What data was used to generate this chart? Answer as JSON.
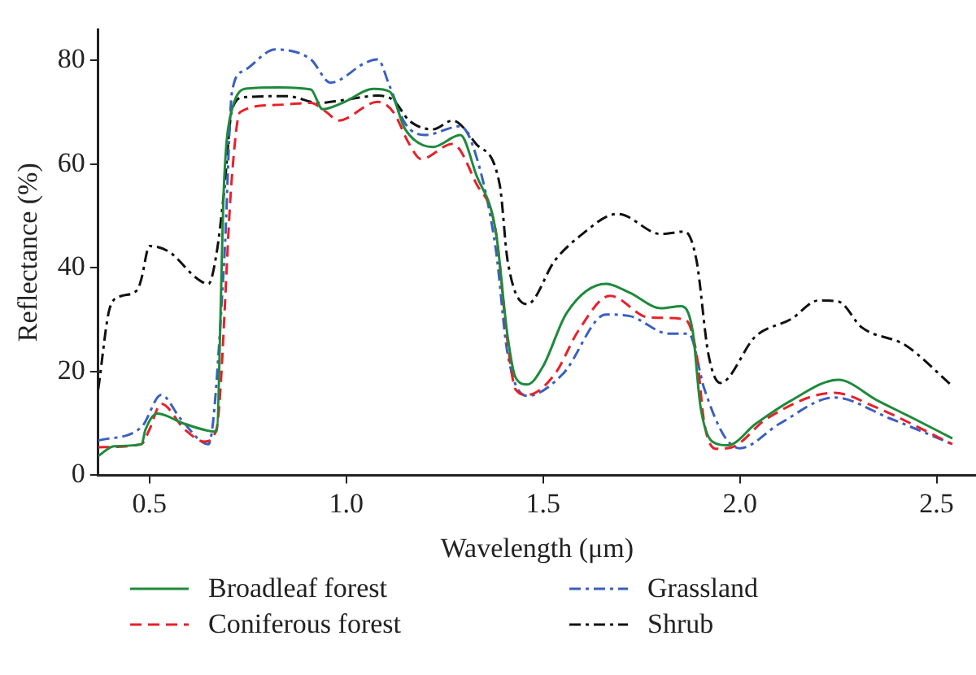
{
  "chart_data": {
    "type": "line",
    "xlabel": "Wavelength (μm)",
    "ylabel": "Reflectance (%)",
    "xlim": [
      0.37,
      2.6
    ],
    "ylim": [
      0,
      86
    ],
    "xticks": [
      0.5,
      {
        "value": 1,
        "label": "1.0"
      },
      1.5,
      {
        "value": 2,
        "label": "2.0"
      },
      2.5
    ],
    "yticks": [
      0,
      20,
      40,
      60,
      80
    ],
    "grid": false,
    "legend": "bottom",
    "marker": "none",
    "series": [
      {
        "name": "Broadleaf forest",
        "color": "#1e8a3c",
        "line_style": "solid",
        "x": [
          0.37,
          0.41,
          0.48,
          0.49,
          0.52,
          0.59,
          0.67,
          0.69,
          0.71,
          0.75,
          0.83,
          0.91,
          0.94,
          0.99,
          1.07,
          1.11,
          1.15,
          1.22,
          1.29,
          1.33,
          1.38,
          1.41,
          1.43,
          1.46,
          1.5,
          1.56,
          1.66,
          1.72,
          1.8,
          1.85,
          1.88,
          1.9,
          1.93,
          1.97,
          2.04,
          2.13,
          2.25,
          2.35,
          2.44,
          2.54
        ],
        "values": [
          3.7,
          5.6,
          6,
          8.8,
          11.9,
          9.9,
          8.4,
          57,
          70.6,
          74.6,
          74.8,
          74.4,
          70.6,
          71.8,
          74.5,
          74,
          66.7,
          63.3,
          65.6,
          58,
          47,
          26.8,
          18.9,
          17.5,
          21,
          31.3,
          36.9,
          35.2,
          32.2,
          32.6,
          27.9,
          13.3,
          6.5,
          5.8,
          9.9,
          14.4,
          18.4,
          14.4,
          11,
          7.1
        ]
      },
      {
        "name": "Coniferous forest",
        "color": "#e8202a",
        "line_style": "dashed",
        "x": [
          0.37,
          0.48,
          0.5,
          0.53,
          0.59,
          0.64,
          0.67,
          0.71,
          0.73,
          0.82,
          0.91,
          0.95,
          0.98,
          1.08,
          1.12,
          1.16,
          1.19,
          1.27,
          1.33,
          1.38,
          1.41,
          1.43,
          1.46,
          1.53,
          1.59,
          1.67,
          1.77,
          1.86,
          1.89,
          1.91,
          1.94,
          1.98,
          2.07,
          2.24,
          2.34,
          2.54
        ],
        "values": [
          5.4,
          6,
          8.8,
          13.8,
          8.8,
          6.5,
          8.8,
          58,
          70,
          71.4,
          71.8,
          70,
          68.4,
          72,
          70,
          63.9,
          61,
          63.9,
          56.3,
          47,
          25.6,
          16.6,
          15.5,
          19.5,
          27.9,
          34.6,
          30.4,
          30.1,
          23.4,
          9.9,
          5.1,
          5.4,
          11,
          15.9,
          13.3,
          6
        ]
      },
      {
        "name": "Grassland",
        "color": "#3a5fc0",
        "line_style": "dashdot",
        "x": [
          0.37,
          0.48,
          0.53,
          0.58,
          0.65,
          0.69,
          0.71,
          0.74,
          0.82,
          0.91,
          0.96,
          1.05,
          1.08,
          1.11,
          1.15,
          1.2,
          1.29,
          1.33,
          1.38,
          1.41,
          1.46,
          1.55,
          1.66,
          1.72,
          1.82,
          1.87,
          1.91,
          1.96,
          2.0,
          2.1,
          2.24,
          2.38,
          2.54
        ],
        "values": [
          6.7,
          9.3,
          15.5,
          10.8,
          6,
          41.4,
          74,
          78,
          82.1,
          80.2,
          75.7,
          79.6,
          80.2,
          75.1,
          67.8,
          65.6,
          67.3,
          61.6,
          43.6,
          23.4,
          15.3,
          19.5,
          31,
          30.7,
          27.3,
          27.3,
          16.6,
          7.6,
          5.2,
          9.9,
          15,
          11,
          6
        ]
      },
      {
        "name": "Shrub",
        "color": "#111111",
        "line_style": "dashdot",
        "x": [
          0.37,
          0.4,
          0.43,
          0.47,
          0.48,
          0.5,
          0.55,
          0.62,
          0.65,
          0.67,
          0.69,
          0.71,
          0.74,
          0.85,
          0.93,
          0.99,
          1.08,
          1.12,
          1.16,
          1.22,
          1.27,
          1.33,
          1.39,
          1.41,
          1.46,
          1.53,
          1.59,
          1.69,
          1.8,
          1.86,
          1.89,
          1.92,
          1.95,
          2.04,
          2.13,
          2.2,
          2.25,
          2.31,
          2.42,
          2.54
        ],
        "values": [
          16.6,
          32.4,
          34.6,
          35.8,
          38,
          44.2,
          43.1,
          38,
          36.9,
          42.5,
          54.9,
          70.6,
          72.9,
          73.1,
          71.8,
          72.3,
          73.2,
          72.3,
          68.4,
          66.7,
          68.4,
          63.9,
          56,
          41.4,
          33,
          41.4,
          45.9,
          50.4,
          46.5,
          47,
          41.4,
          23.4,
          17.8,
          26.8,
          30.1,
          33.7,
          33.5,
          28.5,
          25.1,
          17.2
        ]
      }
    ]
  }
}
